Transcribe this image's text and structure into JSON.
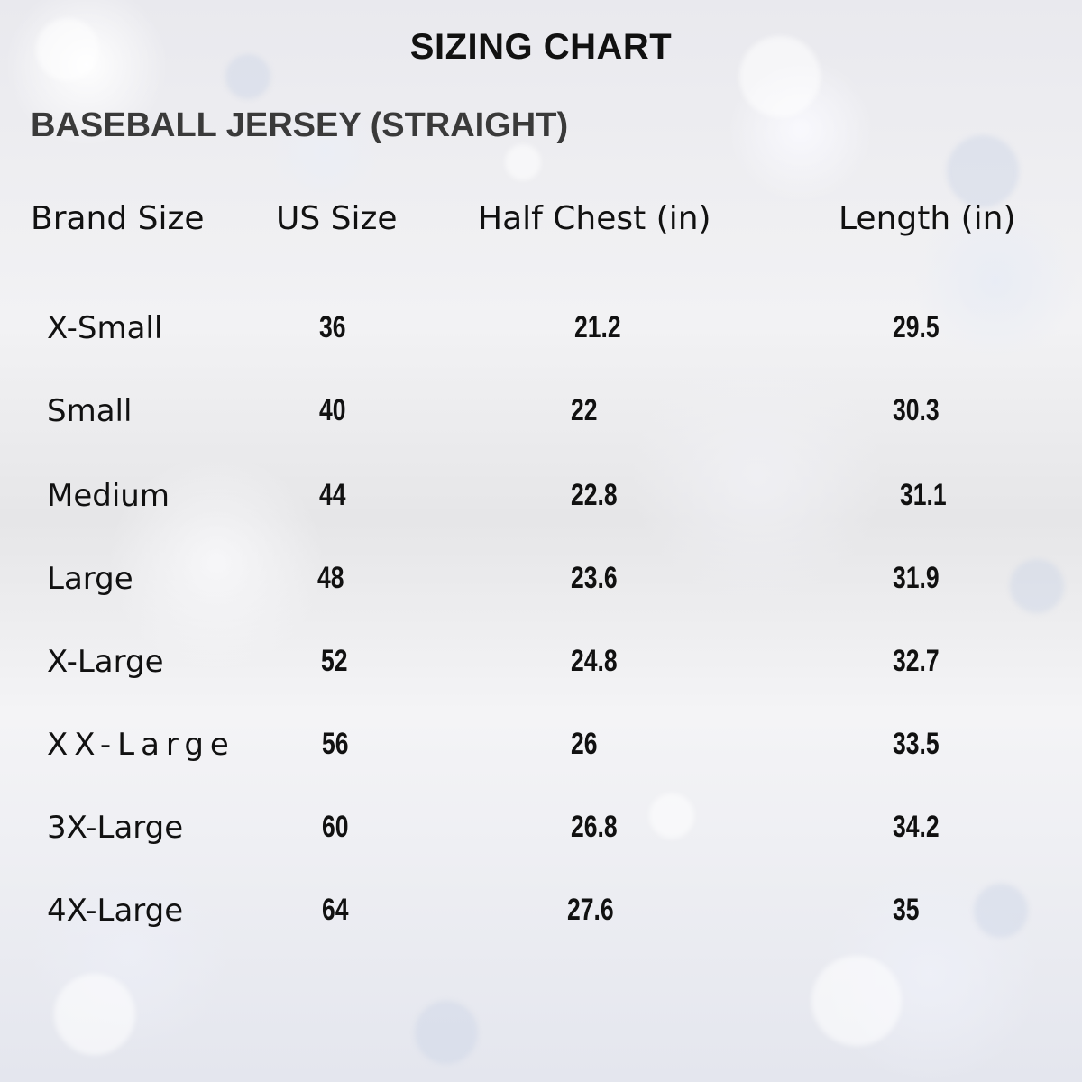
{
  "title": "SIZING CHART",
  "subtitle": "BASEBALL JERSEY (STRAIGHT)",
  "columns": {
    "brand_size": "Brand Size",
    "us_size": "US Size",
    "half_chest": "Half Chest (in)",
    "length": "Length (in)"
  },
  "rows": [
    {
      "brand": "X-Small",
      "us": "36",
      "chest": "21.2",
      "length": "29.5"
    },
    {
      "brand": "Small",
      "us": "40",
      "chest": "22",
      "length": "30.3"
    },
    {
      "brand": "Medium",
      "us": "44",
      "chest": "22.8",
      "length": "31.1"
    },
    {
      "brand": "Large",
      "us": "48",
      "chest": "23.6",
      "length": "31.9"
    },
    {
      "brand": "X-Large",
      "us": "52",
      "chest": "24.8",
      "length": "32.7"
    },
    {
      "brand": "XX-Large",
      "us": "56",
      "chest": "26",
      "length": "33.5"
    },
    {
      "brand": "3X-Large",
      "us": "60",
      "chest": "26.8",
      "length": "34.2"
    },
    {
      "brand": "4X-Large",
      "us": "64",
      "chest": "27.6",
      "length": "35"
    }
  ]
}
